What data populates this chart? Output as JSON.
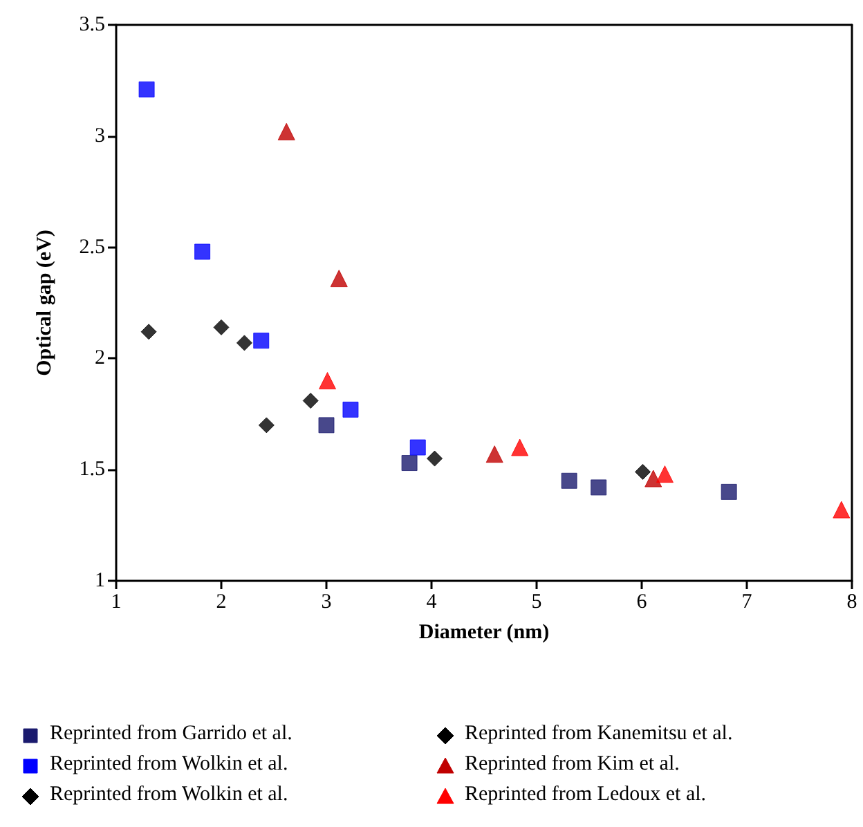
{
  "chart_data": {
    "type": "scatter",
    "xlabel": "Diameter (nm)",
    "ylabel": "Optical gap (eV)",
    "xlim": [
      1,
      8
    ],
    "xticks": [
      1,
      2,
      3,
      4,
      5,
      6,
      7,
      8
    ],
    "ylim": [
      1,
      3.5
    ],
    "yticks": [
      1,
      1.5,
      2,
      2.5,
      3,
      3.5
    ],
    "grid": false,
    "legend": "bottom",
    "series": [
      {
        "name": "Reprinted from Garrido et al.",
        "color": "#1a1a6e",
        "marker": "square",
        "x": [
          3.0,
          3.79,
          5.31,
          5.59,
          6.83
        ],
        "values": [
          1.7,
          1.53,
          1.45,
          1.42,
          1.4
        ]
      },
      {
        "name": "Reprinted from Wolkin et al.",
        "color": "#0000ff",
        "marker": "square",
        "x": [
          1.29,
          1.82,
          2.38,
          3.23,
          3.87
        ],
        "values": [
          3.21,
          2.48,
          2.08,
          1.77,
          1.6
        ]
      },
      {
        "name": "Reprinted from Wolkin et al.",
        "color": "#000000",
        "marker": "diamond",
        "x": [
          1.31,
          2.0,
          2.22,
          2.85
        ],
        "values": [
          2.12,
          2.14,
          2.07,
          1.81
        ]
      },
      {
        "name": "Reprinted from Kanemitsu et al.",
        "color": "#000000",
        "marker": "diamond",
        "x": [
          2.43,
          4.03,
          6.01
        ],
        "values": [
          1.7,
          1.55,
          1.49
        ]
      },
      {
        "name": "Reprinted from Kim et al.",
        "color": "#c00000",
        "marker": "triangle",
        "x": [
          2.62,
          3.12,
          4.6,
          6.11
        ],
        "values": [
          3.02,
          2.36,
          1.57,
          1.46
        ]
      },
      {
        "name": "Reprinted from Ledoux et al.",
        "color": "#ff0000",
        "marker": "triangle",
        "x": [
          3.01,
          4.84,
          6.22,
          7.9
        ],
        "values": [
          1.9,
          1.6,
          1.48,
          1.32
        ]
      }
    ]
  }
}
